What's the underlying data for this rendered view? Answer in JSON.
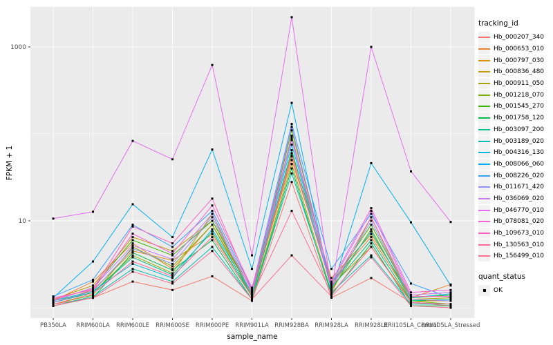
{
  "chart_data": {
    "type": "line",
    "title": "",
    "xlabel": "sample_name",
    "ylabel": "FPKM + 1",
    "y_scale": "log10",
    "y_ticks": [
      10,
      1000
    ],
    "y_minor_ticks": [
      1,
      100
    ],
    "panel_bg": "#EBEBEB",
    "grid_color": "#FFFFFF",
    "tick_text_color": "#4D4D4D",
    "point_color": "#000000",
    "legend": {
      "color_title": "tracking_id",
      "shape_title": "quant_status",
      "shape_items": [
        {
          "label": "OK",
          "icon": "black-square-point"
        }
      ],
      "position": "right"
    },
    "categories": [
      "PB350LA",
      "RRIM600LA",
      "RRIM600LE",
      "RRIM600SE",
      "RRIM600PE",
      "RRIM901LA",
      "RRIM928BA",
      "RRIM928LA",
      "RRIM928LE",
      "RRII105LA_Control",
      "RRII105LA_Stressed"
    ],
    "series": [
      {
        "name": "Hb_000207_340",
        "color": "#F8766D",
        "values": [
          1.1,
          1.3,
          2.0,
          1.6,
          2.3,
          1.2,
          28,
          1.3,
          2.2,
          1.15,
          1.05
        ]
      },
      {
        "name": "Hb_000653_010",
        "color": "#EA8331",
        "values": [
          1.2,
          2.0,
          5.5,
          2.8,
          9.0,
          1.5,
          50,
          2.0,
          6.5,
          1.3,
          1.85
        ]
      },
      {
        "name": "Hb_000797_030",
        "color": "#D89000",
        "values": [
          1.15,
          1.6,
          4.5,
          3.5,
          7.0,
          1.4,
          55,
          1.8,
          5.0,
          1.2,
          1.2
        ]
      },
      {
        "name": "Hb_000836_480",
        "color": "#C09B00",
        "values": [
          1.25,
          1.8,
          6.5,
          4.5,
          10,
          1.6,
          60,
          2.2,
          7.0,
          1.4,
          1.5
        ]
      },
      {
        "name": "Hb_000911_050",
        "color": "#A3A500",
        "values": [
          1.15,
          1.5,
          4.0,
          2.5,
          12,
          1.3,
          45,
          1.5,
          11,
          1.25,
          1.3
        ]
      },
      {
        "name": "Hb_001218_070",
        "color": "#7CAE00",
        "values": [
          1.1,
          1.4,
          5.0,
          3.0,
          9.0,
          1.35,
          95,
          1.6,
          8.0,
          1.2,
          1.1
        ]
      },
      {
        "name": "Hb_001545_270",
        "color": "#39B600",
        "values": [
          1.2,
          1.7,
          6.0,
          4.0,
          10,
          1.45,
          110,
          1.9,
          9.0,
          1.3,
          1.4
        ]
      },
      {
        "name": "Hb_001758_120",
        "color": "#00BB4E",
        "values": [
          1.05,
          1.3,
          4.3,
          2.7,
          6.0,
          1.25,
          40,
          1.4,
          5.5,
          1.05,
          1.05
        ]
      },
      {
        "name": "Hb_003097_200",
        "color": "#00C087",
        "values": [
          1.15,
          1.5,
          3.8,
          2.4,
          7.5,
          1.35,
          65,
          1.7,
          6.0,
          1.2,
          1.25
        ]
      },
      {
        "name": "Hb_003189_020",
        "color": "#00C0AF",
        "values": [
          1.05,
          1.35,
          2.8,
          2.0,
          5.0,
          1.25,
          35,
          1.5,
          4.0,
          1.1,
          1.1
        ]
      },
      {
        "name": "Hb_004316_130",
        "color": "#00BCD8",
        "values": [
          1.2,
          1.55,
          3.2,
          2.2,
          8.0,
          1.45,
          75,
          1.8,
          7.5,
          1.3,
          1.45
        ]
      },
      {
        "name": "Hb_008066_060",
        "color": "#00B0F6",
        "values": [
          1.3,
          3.4,
          15.5,
          6.5,
          66,
          2.8,
          227,
          1.55,
          46,
          9.6,
          1.8
        ]
      },
      {
        "name": "Hb_008226_020",
        "color": "#35A2FF",
        "values": [
          1.35,
          2.1,
          9.0,
          5.0,
          13,
          1.65,
          130,
          2.8,
          12,
          1.9,
          1.3
        ]
      },
      {
        "name": "Hb_011671_420",
        "color": "#9590FF",
        "values": [
          1.15,
          1.55,
          4.8,
          3.2,
          11,
          1.45,
          85,
          1.7,
          10,
          1.25,
          1.2
        ]
      },
      {
        "name": "Hb_036069_020",
        "color": "#C77CFF",
        "values": [
          1.2,
          1.7,
          5.2,
          3.6,
          12,
          1.55,
          120,
          1.9,
          13,
          1.4,
          1.5
        ]
      },
      {
        "name": "Hb_046770_010",
        "color": "#E76BF3",
        "values": [
          10.6,
          12.7,
          83,
          51,
          620,
          4.0,
          2200,
          1.6,
          1000,
          37,
          9.7
        ]
      },
      {
        "name": "Hb_078081_020",
        "color": "#FA62DB",
        "values": [
          1.3,
          1.6,
          7.1,
          4.2,
          15,
          1.7,
          90,
          2.0,
          14,
          1.5,
          1.6
        ]
      },
      {
        "name": "Hb_109673_010",
        "color": "#FF62BC",
        "values": [
          1.25,
          1.65,
          8.6,
          5.5,
          18,
          1.55,
          56,
          1.75,
          11,
          1.35,
          1.35
        ]
      },
      {
        "name": "Hb_130563_010",
        "color": "#FF6A98",
        "values": [
          1.1,
          1.45,
          3.4,
          2.3,
          6.5,
          1.35,
          13,
          1.45,
          5.0,
          1.15,
          1.1
        ]
      },
      {
        "name": "Hb_156499_010",
        "color": "#FF6E91",
        "values": [
          1.05,
          1.3,
          2.6,
          1.9,
          4.5,
          1.25,
          4.0,
          1.35,
          3.8,
          1.05,
          1.0
        ]
      }
    ]
  }
}
